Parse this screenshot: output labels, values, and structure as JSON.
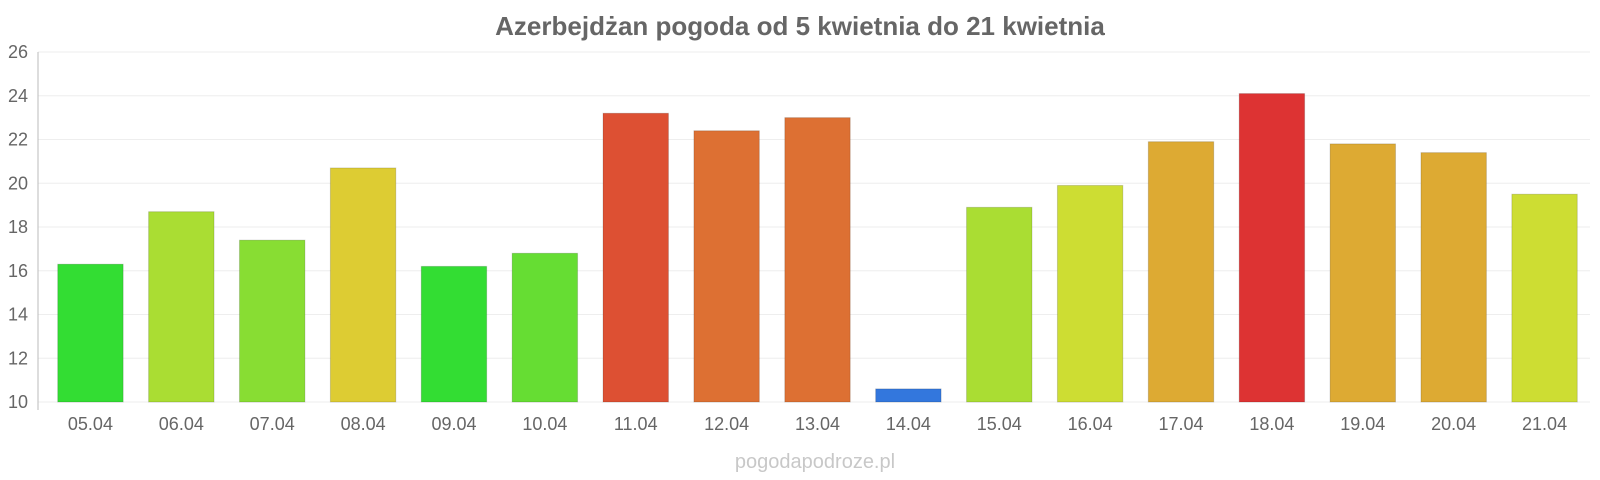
{
  "chart_data": {
    "type": "bar",
    "title": "Azerbejdżan pogoda od 5 kwietnia do 21 kwietnia",
    "xlabel": "",
    "ylabel": "",
    "ylim": [
      10,
      26
    ],
    "yticks": [
      10,
      12,
      14,
      16,
      18,
      20,
      22,
      24,
      26
    ],
    "grid": true,
    "categories": [
      "05.04",
      "06.04",
      "07.04",
      "08.04",
      "09.04",
      "10.04",
      "11.04",
      "12.04",
      "13.04",
      "14.04",
      "15.04",
      "16.04",
      "17.04",
      "18.04",
      "19.04",
      "20.04",
      "21.04"
    ],
    "values": [
      16.3,
      18.7,
      17.4,
      20.7,
      16.2,
      16.8,
      23.2,
      22.4,
      23.0,
      10.6,
      18.9,
      19.9,
      21.9,
      24.1,
      21.8,
      21.4,
      19.5
    ],
    "colors": [
      "#33dd33",
      "#aadd33",
      "#88dd33",
      "#ddcc33",
      "#33dd33",
      "#66dd33",
      "#dd5033",
      "#dd7033",
      "#dd7033",
      "#3377dd",
      "#aadd33",
      "#cddd33",
      "#ddaa33",
      "#dd3333",
      "#ddaa33",
      "#ddaa33",
      "#cddd33"
    ]
  },
  "watermark": "pogodapodroze.pl"
}
